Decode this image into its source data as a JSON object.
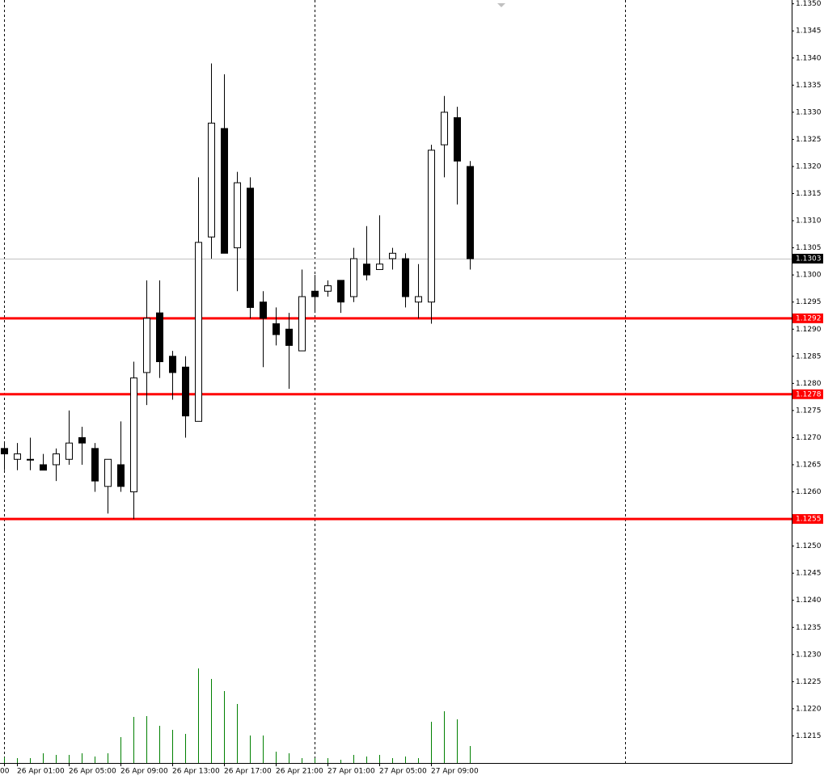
{
  "chart_data": {
    "type": "candlestick",
    "categories": [
      "00",
      "26 Apr 01:00",
      null,
      null,
      null,
      "26 Apr 05:00",
      null,
      null,
      null,
      "26 Apr 09:00",
      null,
      null,
      null,
      "26 Apr 13:00",
      null,
      null,
      null,
      "26 Apr 17:00",
      null,
      null,
      null,
      "26 Apr 21:00",
      null,
      null,
      null,
      "27 Apr 01:00",
      null,
      null,
      null,
      "27 Apr 05:00",
      null,
      null,
      null,
      "27 Apr 09:00",
      null,
      null,
      null
    ],
    "open": [
      1.1268,
      1.1266,
      1.1266,
      1.1265,
      1.1265,
      1.1266,
      1.127,
      1.1268,
      1.1261,
      1.1265,
      1.126,
      1.1282,
      1.1293,
      1.1285,
      1.1283,
      1.1273,
      1.1307,
      1.1327,
      1.1305,
      1.1316,
      1.1295,
      1.1291,
      1.129,
      1.1286,
      1.1297,
      1.1297,
      1.1299,
      1.1296,
      1.1302,
      1.1301,
      1.1303,
      1.1303,
      1.1295,
      1.1295,
      1.1324,
      1.1329,
      1.132
    ],
    "high": [
      1.1269,
      1.1269,
      1.127,
      1.1267,
      1.1268,
      1.1275,
      1.1272,
      1.1269,
      1.1266,
      1.1273,
      1.1284,
      1.1299,
      1.1299,
      1.1286,
      1.1285,
      1.1318,
      1.1339,
      1.1337,
      1.1319,
      1.1318,
      1.1297,
      1.1294,
      1.1293,
      1.1301,
      1.13,
      1.1299,
      1.1299,
      1.1305,
      1.1309,
      1.1311,
      1.1305,
      1.1304,
      1.1302,
      1.1324,
      1.1333,
      1.1331,
      1.1321
    ],
    "low": [
      1.1264,
      1.1264,
      1.1264,
      1.1264,
      1.1262,
      1.1265,
      1.1265,
      1.126,
      1.1256,
      1.126,
      1.1255,
      1.1276,
      1.1281,
      1.1277,
      1.127,
      1.1273,
      1.1303,
      1.1304,
      1.1297,
      1.1292,
      1.1283,
      1.1287,
      1.1279,
      1.1286,
      1.1293,
      1.1296,
      1.1293,
      1.1295,
      1.1299,
      1.1301,
      1.1301,
      1.1294,
      1.1292,
      1.1291,
      1.1318,
      1.1313,
      1.1301
    ],
    "close": [
      1.1267,
      1.1267,
      1.1266,
      1.1264,
      1.1267,
      1.1269,
      1.1269,
      1.1262,
      1.1266,
      1.1261,
      1.1281,
      1.1292,
      1.1284,
      1.1282,
      1.1274,
      1.1306,
      1.1328,
      1.1304,
      1.1317,
      1.1294,
      1.1292,
      1.1289,
      1.1287,
      1.1296,
      1.1296,
      1.1298,
      1.1295,
      1.1303,
      1.13,
      1.1302,
      1.1304,
      1.1296,
      1.1296,
      1.1323,
      1.133,
      1.1321,
      1.1303
    ],
    "volumes": [
      7,
      6,
      6,
      12,
      10,
      10,
      12,
      8,
      12,
      32,
      57,
      58,
      46,
      41,
      36,
      117,
      104,
      89,
      73,
      34,
      34,
      14,
      12,
      6,
      6,
      6,
      4,
      10,
      8,
      10,
      6,
      8,
      6,
      51,
      64,
      54,
      21
    ],
    "ylim": [
      1.121,
      1.13507
    ],
    "yticks": [
      {
        "value": 1.135,
        "label": "1.1350"
      },
      1.1345,
      {
        "value": 1.134,
        "label": "1.1340"
      },
      1.1335,
      {
        "value": 1.133,
        "label": "1.1330"
      },
      1.1325,
      {
        "value": 1.132,
        "label": "1.1320"
      },
      1.1315,
      {
        "value": 1.131,
        "label": "1.1310"
      },
      1.1305,
      {
        "value": 1.13,
        "label": "1.1300"
      },
      1.1295,
      {
        "value": 1.129,
        "label": "1.1290"
      },
      1.1285,
      {
        "value": 1.128,
        "label": "1.1280"
      },
      1.1275,
      {
        "value": 1.127,
        "label": "1.1270"
      },
      1.1265,
      {
        "value": 1.126,
        "label": "1.1260"
      },
      1.1255,
      {
        "value": 1.125,
        "label": "1.1250"
      },
      1.1245,
      {
        "value": 1.124,
        "label": "1.1240"
      },
      1.1235,
      {
        "value": 1.123,
        "label": "1.1230"
      },
      1.1225,
      {
        "value": 1.122,
        "label": "1.1220"
      },
      1.1215
    ],
    "horizontal_lines": [
      1.1292,
      1.1278,
      1.1255
    ],
    "current_price": 1.1303,
    "up_color": "#ffffff",
    "down_color": "#000000",
    "volume_color": "#008000",
    "line_color": "#ff0000"
  }
}
